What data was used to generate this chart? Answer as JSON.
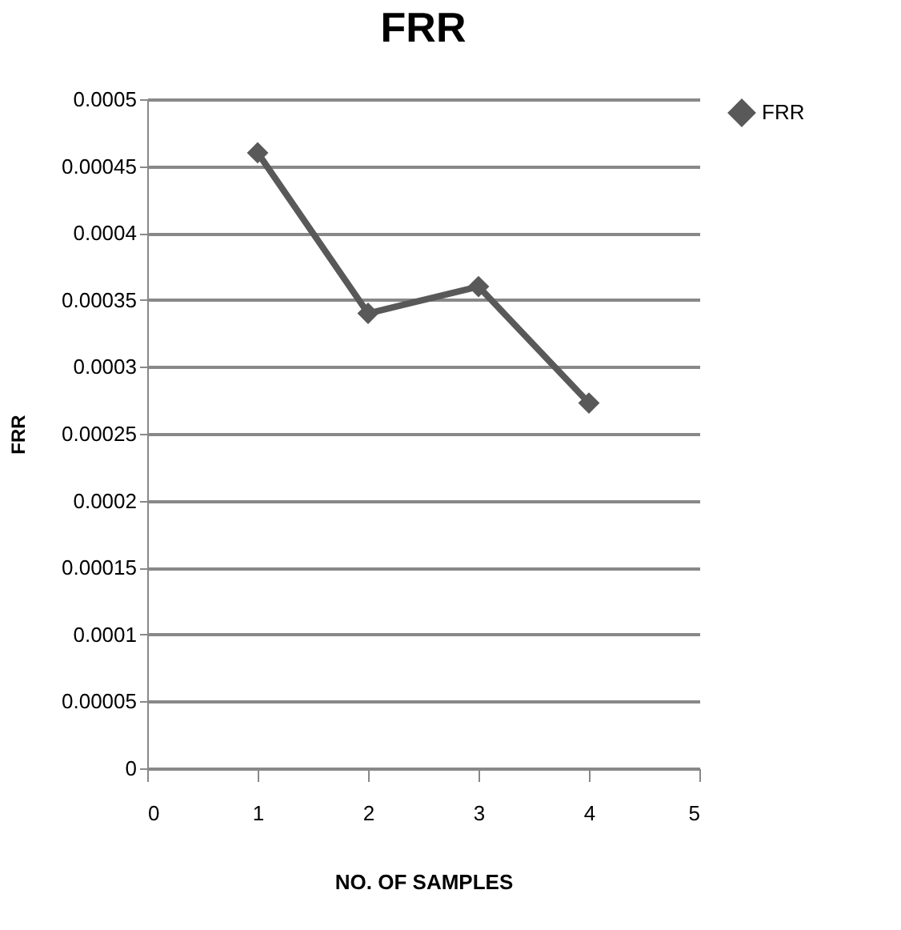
{
  "chart_data": {
    "type": "line",
    "title": "FRR",
    "xlabel": "NO. OF SAMPLES",
    "ylabel": "FRR",
    "x": [
      1,
      2,
      3,
      4
    ],
    "series": [
      {
        "name": "FRR",
        "color": "#595959",
        "values": [
          0.00046,
          0.00034,
          0.00036,
          0.000273
        ]
      }
    ],
    "xlim": [
      0,
      5
    ],
    "xticks": [
      0,
      1,
      2,
      3,
      4,
      5
    ],
    "ylim": [
      0,
      0.0005
    ],
    "yticks": [
      0,
      {
        "value": 5e-05,
        "label": "0.00005"
      },
      0.0001,
      0.00015,
      0.0002,
      0.00025,
      0.0003,
      0.00035,
      0.0004,
      0.00045,
      0.0005
    ],
    "grid": "y",
    "legend": "right",
    "marker": "diamond",
    "line_style": "solid"
  }
}
